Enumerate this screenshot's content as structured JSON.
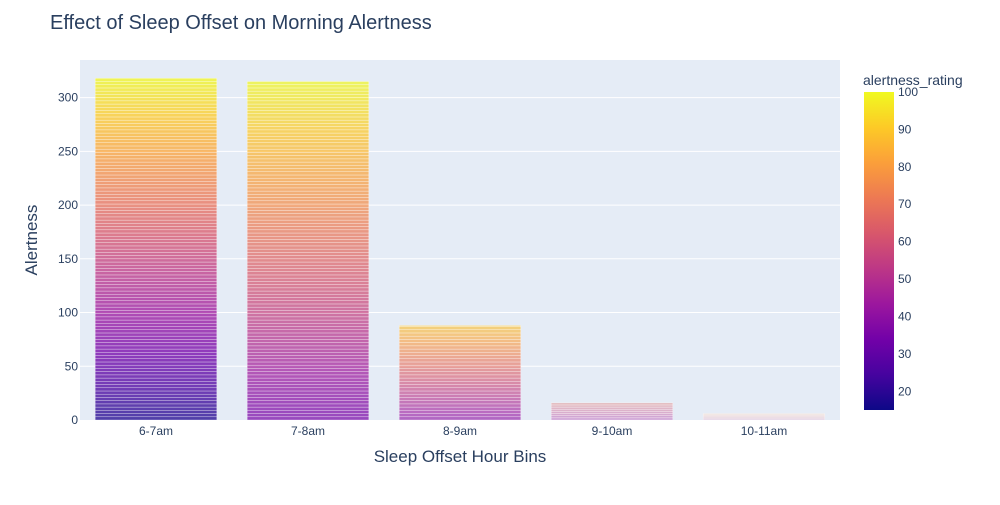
{
  "chart_data": {
    "type": "bar",
    "title": "Effect of Sleep Offset on Morning Alertness",
    "xlabel": "Sleep Offset Hour Bins",
    "ylabel": "Alertness",
    "categories": [
      "6-7am",
      "7-8am",
      "8-9am",
      "9-10am",
      "10-11am"
    ],
    "totals": [
      318,
      315,
      88,
      16,
      6
    ],
    "ylim": [
      0,
      335
    ],
    "yticks": [
      0,
      50,
      100,
      150,
      200,
      250,
      300
    ],
    "grid": true,
    "colorbar": {
      "title": "alertness_rating",
      "range": [
        15,
        100
      ],
      "ticks": [
        20,
        30,
        40,
        50,
        60,
        70,
        80,
        90,
        100
      ],
      "colorscale": [
        "#0d0887",
        "#46039f",
        "#7201a8",
        "#9c179e",
        "#bd3786",
        "#d8576b",
        "#ed7953",
        "#fb9f3a",
        "#fdca26",
        "#f0f921"
      ]
    },
    "stack_rating_ranges": [
      {
        "category": "6-7am",
        "min": 18,
        "max": 100,
        "opacity": 0.75
      },
      {
        "category": "7-8am",
        "min": 35,
        "max": 100,
        "opacity": 0.7
      },
      {
        "category": "8-9am",
        "min": 40,
        "max": 90,
        "opacity": 0.6
      },
      {
        "category": "9-10am",
        "min": 45,
        "max": 70,
        "opacity": 0.35
      },
      {
        "category": "10-11am",
        "min": 55,
        "max": 80,
        "opacity": 0.2
      }
    ]
  }
}
